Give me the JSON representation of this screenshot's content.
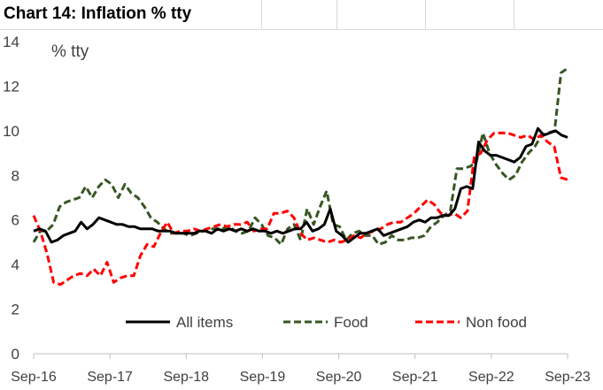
{
  "title": "Chart 14: Inflation % tty",
  "chart_data": {
    "type": "line",
    "title": "Chart 14: Inflation % tty",
    "units_label": "% tty",
    "xlabel": "",
    "ylabel": "",
    "ylim": [
      0,
      14
    ],
    "yticks": [
      "0",
      "2",
      "4",
      "6",
      "8",
      "10",
      "12",
      "14"
    ],
    "xticks": [
      "Sep-16",
      "Sep-17",
      "Sep-18",
      "Sep-19",
      "Sep-20",
      "Sep-21",
      "Sep-22",
      "Sep-23"
    ],
    "x_start": "2016-09",
    "x_end": "2023-09",
    "grid": false,
    "legend_position": "bottom",
    "colors": {
      "all_items": "#000000",
      "food": "#375623",
      "non_food": "#ff0000"
    },
    "series": [
      {
        "name": "All items",
        "style": "solid",
        "values": [
          5.5,
          5.6,
          5.5,
          5.0,
          5.1,
          5.3,
          5.4,
          5.5,
          5.9,
          5.6,
          5.8,
          6.1,
          6.0,
          5.9,
          5.8,
          5.8,
          5.7,
          5.7,
          5.6,
          5.6,
          5.6,
          5.5,
          5.5,
          5.5,
          5.4,
          5.4,
          5.4,
          5.4,
          5.5,
          5.5,
          5.4,
          5.6,
          5.5,
          5.6,
          5.5,
          5.6,
          5.5,
          5.6,
          5.5,
          5.5,
          5.4,
          5.5,
          5.4,
          5.5,
          5.6,
          5.6,
          5.9,
          5.5,
          5.6,
          5.8,
          6.5,
          5.5,
          5.3,
          5.0,
          5.2,
          5.4,
          5.4,
          5.5,
          5.6,
          5.3,
          5.4,
          5.5,
          5.6,
          5.7,
          5.9,
          6.0,
          5.9,
          6.1,
          6.1,
          6.2,
          6.2,
          6.5,
          7.4,
          7.5,
          7.4,
          9.5,
          9.1,
          8.9,
          8.9,
          8.8,
          8.7,
          8.6,
          8.8,
          9.3,
          9.4,
          10.1,
          9.8,
          9.9,
          10.0,
          9.8,
          9.7
        ]
      },
      {
        "name": "Food",
        "style": "dashed",
        "values": [
          5.0,
          5.5,
          5.5,
          5.8,
          6.6,
          6.8,
          6.9,
          7.0,
          7.5,
          7.0,
          7.5,
          7.8,
          7.6,
          7.0,
          7.6,
          7.2,
          7.0,
          6.6,
          6.1,
          5.9,
          5.6,
          5.4,
          5.4,
          5.4,
          5.3,
          5.4,
          5.5,
          5.6,
          5.6,
          5.6,
          5.7,
          5.5,
          5.4,
          5.5,
          6.1,
          5.8,
          5.3,
          5.2,
          4.9,
          5.6,
          5.8,
          5.1,
          6.5,
          5.8,
          6.6,
          7.3,
          5.8,
          5.7,
          5.1,
          5.4,
          5.5,
          5.3,
          5.3,
          4.9,
          5.0,
          5.3,
          5.1,
          5.1,
          5.2,
          5.2,
          5.3,
          5.7,
          5.9,
          6.2,
          6.4,
          8.3,
          8.3,
          8.4,
          8.6,
          9.9,
          9.0,
          8.5,
          8.1,
          7.8,
          8.0,
          8.6,
          9.0,
          9.3,
          9.8,
          9.9,
          10.0,
          12.6,
          12.8
        ]
      },
      {
        "name": "Non food",
        "style": "dashed",
        "values": [
          6.2,
          5.5,
          4.5,
          3.2,
          3.1,
          3.3,
          3.5,
          3.6,
          3.5,
          3.8,
          3.5,
          4.1,
          3.2,
          3.4,
          3.5,
          3.5,
          4.4,
          4.9,
          4.8,
          5.4,
          5.9,
          5.4,
          5.5,
          5.5,
          5.6,
          5.5,
          5.6,
          5.7,
          5.8,
          5.7,
          5.8,
          5.8,
          5.9,
          5.5,
          5.6,
          5.6,
          6.3,
          6.3,
          6.4,
          6.1,
          5.4,
          5.1,
          5.2,
          5.1,
          5.0,
          5.1,
          5.0,
          5.1,
          5.3,
          5.2,
          5.4,
          5.5,
          5.6,
          5.8,
          5.9,
          5.9,
          6.1,
          6.3,
          6.6,
          6.9,
          6.7,
          6.3,
          6.2,
          6.3,
          6.1,
          6.4,
          8.8,
          9.0,
          9.6,
          9.9,
          9.9,
          9.9,
          9.8,
          9.7,
          9.8,
          9.6,
          9.8,
          9.5,
          9.3,
          7.9,
          7.8
        ]
      }
    ]
  }
}
